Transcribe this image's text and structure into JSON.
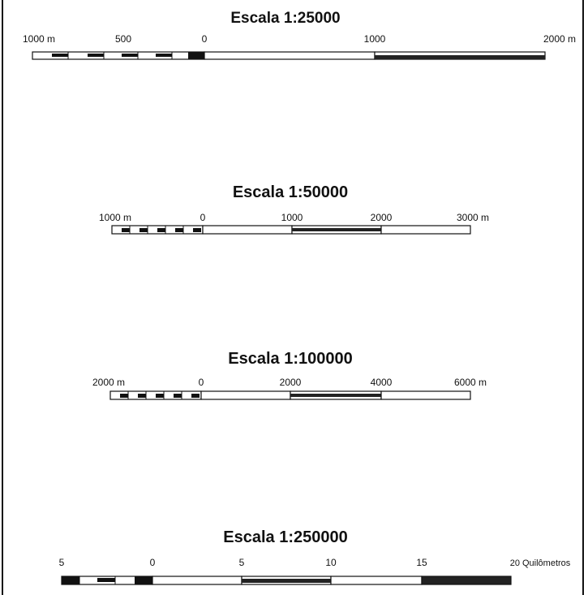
{
  "scales": [
    {
      "title": "Escala 1:25000",
      "labels": [
        "1000 m",
        "500",
        "0",
        "1000",
        "2000 m"
      ],
      "segments": [
        "white",
        "black",
        "white",
        "black"
      ]
    },
    {
      "title": "Escala  1:50000",
      "labels": [
        "1000 m",
        "0",
        "1000",
        "2000",
        "3000 m"
      ],
      "segments": [
        "white",
        "black",
        "white"
      ]
    },
    {
      "title": "Escala 1:100000",
      "labels": [
        "2000 m",
        "0",
        "2000",
        "4000",
        "6000 m"
      ],
      "segments": [
        "white",
        "black",
        "white"
      ]
    },
    {
      "title": "Escala 1:250000",
      "labels": [
        "5",
        "0",
        "5",
        "10",
        "15",
        "20 Quilômetros"
      ],
      "segments": [
        "white",
        "black",
        "white",
        "black"
      ]
    }
  ]
}
